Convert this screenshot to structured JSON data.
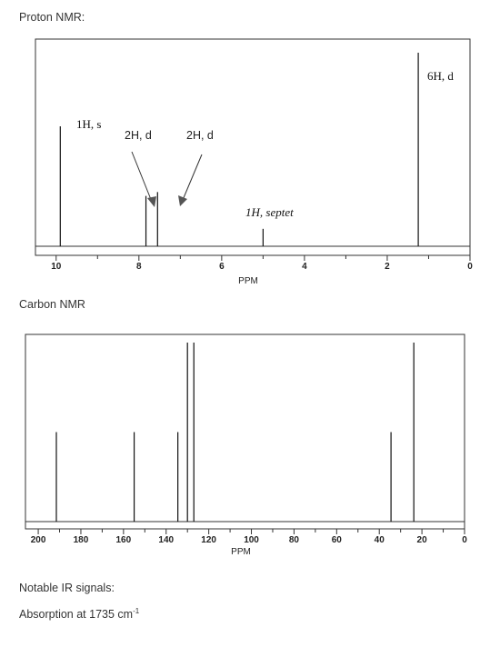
{
  "labels": {
    "proton_title": "Proton NMR:",
    "carbon_title": "Carbon NMR",
    "ir_title": "Notable IR signals:",
    "ir_absorption_prefix": "Absorption at 1735 cm",
    "ir_absorption_sup": "-1"
  },
  "chart_data": [
    {
      "type": "nmr-spectrum",
      "title": "Proton NMR:",
      "xlabel": "PPM",
      "xlim": [
        10.5,
        0
      ],
      "xticks": [
        "10",
        "8",
        "6",
        "4",
        "2",
        "0"
      ],
      "peaks": [
        {
          "ppm": 9.9,
          "height": 0.62,
          "label": "1H, s"
        },
        {
          "ppm": 7.83,
          "height": 0.26,
          "label": "2H, d"
        },
        {
          "ppm": 7.55,
          "height": 0.28,
          "label": "2H, d"
        },
        {
          "ppm": 5.0,
          "height": 0.09,
          "label": "1H, septet"
        },
        {
          "ppm": 1.25,
          "height": 1.0,
          "label": "6H, d"
        }
      ]
    },
    {
      "type": "nmr-spectrum",
      "title": "Carbon NMR",
      "xlabel": "PPM",
      "xlim": [
        206,
        0
      ],
      "xticks": [
        "200",
        "180",
        "160",
        "140",
        "120",
        "100",
        "80",
        "60",
        "40",
        "20",
        "0"
      ],
      "peaks": [
        {
          "ppm": 191.5,
          "height": 0.5
        },
        {
          "ppm": 155.0,
          "height": 0.5
        },
        {
          "ppm": 134.5,
          "height": 0.5
        },
        {
          "ppm": 130.0,
          "height": 1.0
        },
        {
          "ppm": 127.0,
          "height": 1.0
        },
        {
          "ppm": 34.5,
          "height": 0.5
        },
        {
          "ppm": 23.8,
          "height": 1.0
        }
      ]
    }
  ]
}
